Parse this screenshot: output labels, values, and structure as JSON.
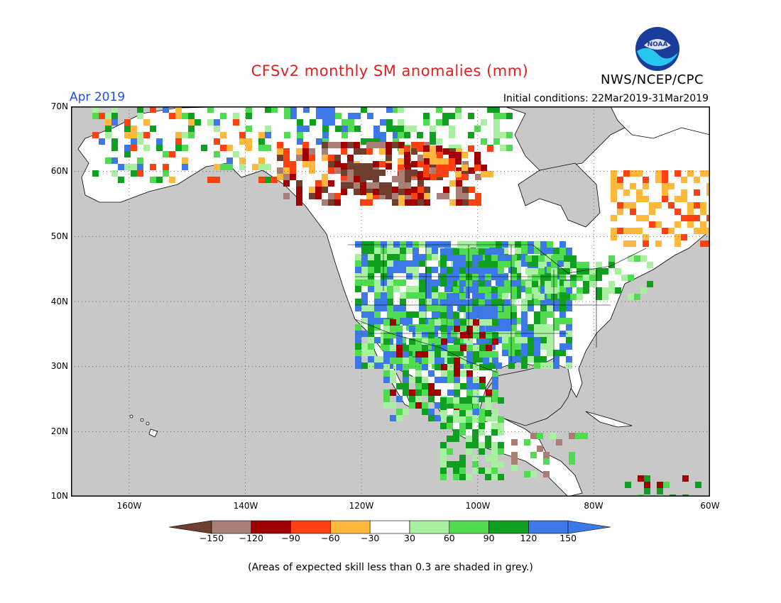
{
  "header": {
    "title": "CFSv2 monthly SM anomalies (mm)",
    "agency": "NWS/NCEP/CPC",
    "valid_month": "Apr 2019",
    "initial_conditions": "Initial conditions: 22Mar2019-31Mar2019",
    "logo_text": "NOAA"
  },
  "map": {
    "lat_range": [
      10,
      70
    ],
    "lon_range": [
      -170,
      -60
    ],
    "lat_labels": [
      "70N",
      "60N",
      "50N",
      "40N",
      "30N",
      "20N",
      "10N"
    ],
    "lon_labels": [
      "160W",
      "140W",
      "120W",
      "100W",
      "80W",
      "60W"
    ],
    "background_color": "#c8c8c8",
    "land_color": "#ffffff",
    "regions": [
      {
        "name": "western-canada-dry",
        "value": "-60"
      },
      {
        "name": "northern-bc-very-dry",
        "value": "-150"
      },
      {
        "name": "central-us-wet",
        "value": "150"
      },
      {
        "name": "mexico-wet",
        "value": "120"
      }
    ]
  },
  "colorbar": {
    "labels": [
      "-150",
      "-120",
      "-90",
      "-60",
      "-30",
      "30",
      "60",
      "90",
      "120",
      "150"
    ],
    "colors": [
      "#6e3e2e",
      "#a97e74",
      "#a00000",
      "#ff4010",
      "#ffb83c",
      "#ffffff",
      "#a8f0a0",
      "#50dc50",
      "#10a020",
      "#3c78e6",
      "#3c78e6"
    ],
    "arrow_left_color": "#6e3e2e",
    "arrow_right_color": "#3c78e6"
  },
  "footnote": "(Areas of expected skill less than 0.3 are shaded in grey.)"
}
